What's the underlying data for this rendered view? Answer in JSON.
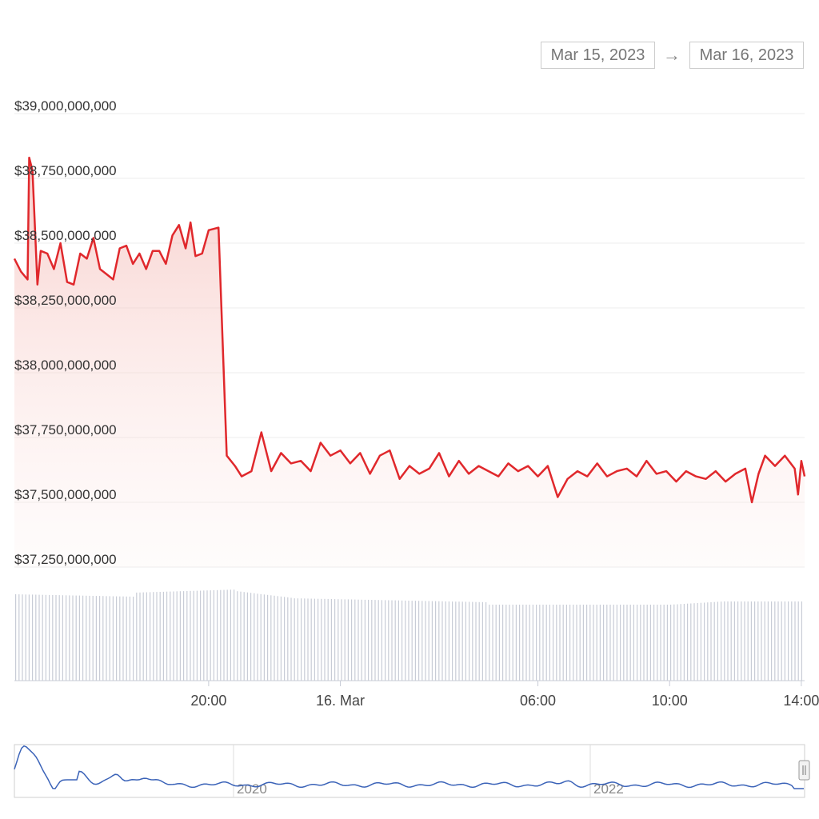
{
  "range": {
    "from": "Mar 15, 2023",
    "separator": "→",
    "to": "Mar 16, 2023"
  },
  "chart_data": {
    "type": "area",
    "title": "",
    "xlabel": "",
    "ylabel": "",
    "y_ticks": [
      "$37,250,000,000",
      "$37,500,000,000",
      "$37,750,000,000",
      "$38,000,000,000",
      "$38,250,000,000",
      "$38,500,000,000",
      "$38,750,000,000",
      "$39,000,000,000"
    ],
    "ylim": [
      37250000000,
      39000000000
    ],
    "x_ticks": [
      "20:00",
      "16. Mar",
      "06:00",
      "10:00",
      "14:00"
    ],
    "xlim_hours": [
      14.1,
      38.1
    ],
    "line_color": "#e0282c",
    "volume_color": "#c8ccd6",
    "navigator_color": "#3b63b8",
    "navigator_labels": [
      "2020",
      "2022"
    ],
    "series": [
      {
        "points": [
          [
            14.1,
            38440000000
          ],
          [
            14.3,
            38390000000
          ],
          [
            14.5,
            38360000000
          ],
          [
            14.55,
            38830000000
          ],
          [
            14.65,
            38780000000
          ],
          [
            14.8,
            38340000000
          ],
          [
            14.9,
            38470000000
          ],
          [
            15.1,
            38460000000
          ],
          [
            15.3,
            38400000000
          ],
          [
            15.5,
            38500000000
          ],
          [
            15.7,
            38350000000
          ],
          [
            15.9,
            38340000000
          ],
          [
            16.1,
            38460000000
          ],
          [
            16.3,
            38440000000
          ],
          [
            16.5,
            38520000000
          ],
          [
            16.7,
            38400000000
          ],
          [
            16.9,
            38380000000
          ],
          [
            17.1,
            38360000000
          ],
          [
            17.3,
            38480000000
          ],
          [
            17.5,
            38490000000
          ],
          [
            17.7,
            38420000000
          ],
          [
            17.9,
            38460000000
          ],
          [
            18.1,
            38400000000
          ],
          [
            18.3,
            38470000000
          ],
          [
            18.5,
            38470000000
          ],
          [
            18.7,
            38420000000
          ],
          [
            18.9,
            38530000000
          ],
          [
            19.1,
            38570000000
          ],
          [
            19.3,
            38480000000
          ],
          [
            19.45,
            38580000000
          ],
          [
            19.6,
            38450000000
          ],
          [
            19.8,
            38460000000
          ],
          [
            20.0,
            38550000000
          ],
          [
            20.3,
            38560000000
          ],
          [
            20.55,
            37680000000
          ],
          [
            20.8,
            37640000000
          ],
          [
            21.0,
            37600000000
          ],
          [
            21.3,
            37620000000
          ],
          [
            21.6,
            37770000000
          ],
          [
            21.9,
            37620000000
          ],
          [
            22.2,
            37690000000
          ],
          [
            22.5,
            37650000000
          ],
          [
            22.8,
            37660000000
          ],
          [
            23.1,
            37620000000
          ],
          [
            23.4,
            37730000000
          ],
          [
            23.7,
            37680000000
          ],
          [
            24.0,
            37700000000
          ],
          [
            24.3,
            37650000000
          ],
          [
            24.6,
            37690000000
          ],
          [
            24.9,
            37610000000
          ],
          [
            25.2,
            37680000000
          ],
          [
            25.5,
            37700000000
          ],
          [
            25.8,
            37590000000
          ],
          [
            26.1,
            37640000000
          ],
          [
            26.4,
            37610000000
          ],
          [
            26.7,
            37630000000
          ],
          [
            27.0,
            37690000000
          ],
          [
            27.3,
            37600000000
          ],
          [
            27.6,
            37660000000
          ],
          [
            27.9,
            37610000000
          ],
          [
            28.2,
            37640000000
          ],
          [
            28.5,
            37620000000
          ],
          [
            28.8,
            37600000000
          ],
          [
            29.1,
            37650000000
          ],
          [
            29.4,
            37620000000
          ],
          [
            29.7,
            37640000000
          ],
          [
            30.0,
            37600000000
          ],
          [
            30.3,
            37640000000
          ],
          [
            30.6,
            37520000000
          ],
          [
            30.9,
            37590000000
          ],
          [
            31.2,
            37620000000
          ],
          [
            31.5,
            37600000000
          ],
          [
            31.8,
            37650000000
          ],
          [
            32.1,
            37600000000
          ],
          [
            32.4,
            37620000000
          ],
          [
            32.7,
            37630000000
          ],
          [
            33.0,
            37600000000
          ],
          [
            33.3,
            37660000000
          ],
          [
            33.6,
            37610000000
          ],
          [
            33.9,
            37620000000
          ],
          [
            34.2,
            37580000000
          ],
          [
            34.5,
            37620000000
          ],
          [
            34.8,
            37600000000
          ],
          [
            35.1,
            37590000000
          ],
          [
            35.4,
            37620000000
          ],
          [
            35.7,
            37580000000
          ],
          [
            36.0,
            37610000000
          ],
          [
            36.3,
            37630000000
          ],
          [
            36.5,
            37500000000
          ],
          [
            36.7,
            37610000000
          ],
          [
            36.9,
            37680000000
          ],
          [
            37.2,
            37640000000
          ],
          [
            37.5,
            37680000000
          ],
          [
            37.8,
            37630000000
          ],
          [
            37.9,
            37530000000
          ],
          [
            38.0,
            37660000000
          ],
          [
            38.1,
            37600000000
          ]
        ]
      }
    ]
  }
}
